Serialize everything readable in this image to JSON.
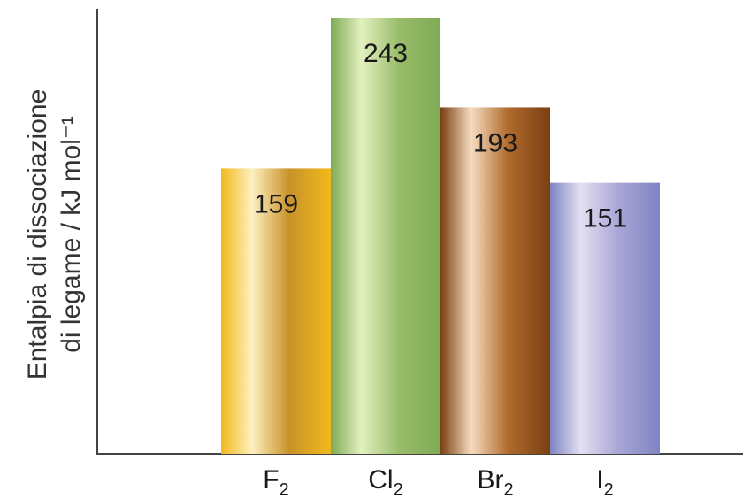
{
  "chart_data": {
    "type": "bar",
    "categories": [
      "F2",
      "Cl2",
      "Br2",
      "I2"
    ],
    "category_labels": [
      {
        "base": "F",
        "sub": "2"
      },
      {
        "base": "Cl",
        "sub": "2"
      },
      {
        "base": "Br",
        "sub": "2"
      },
      {
        "base": "I",
        "sub": "2"
      }
    ],
    "values": [
      159,
      243,
      193,
      151
    ],
    "data_labels": [
      "159",
      "243",
      "193",
      "151"
    ],
    "ylabel_line1": "Entalpia di dissociazione",
    "ylabel_line2": "di legame / kJ mol⁻¹",
    "ylim": [
      0,
      243
    ],
    "grid": false,
    "colors": [
      {
        "dark": "#f2b91a",
        "light": "#fdf0c0",
        "mid": "#c8922a"
      },
      {
        "dark": "#7faa55",
        "light": "#e3f0bf",
        "mid": "#99bd6a"
      },
      {
        "dark": "#7a3f12",
        "light": "#f6dcc0",
        "mid": "#b06a2c"
      },
      {
        "dark": "#7e84c2",
        "light": "#e4e0f2",
        "mid": "#a9a6d6"
      }
    ]
  }
}
